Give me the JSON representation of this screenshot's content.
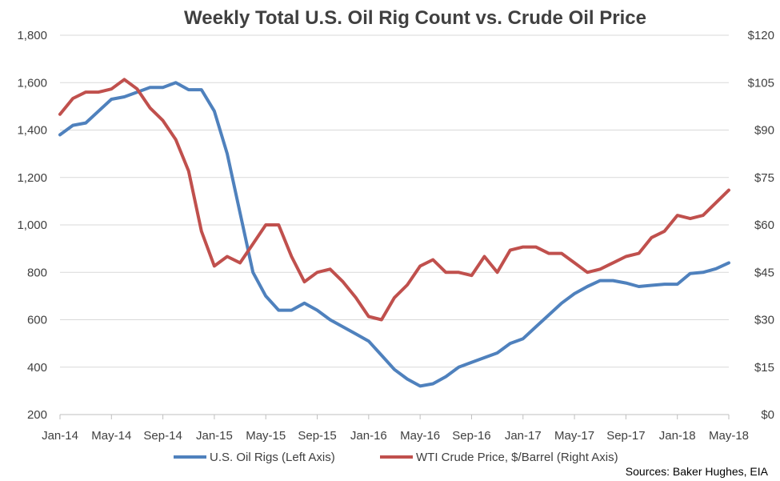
{
  "chart_data": {
    "type": "line",
    "title": "Weekly Total U.S. Oil Rig Count vs. Crude Oil Price",
    "x_ticks": [
      "Jan-14",
      "May-14",
      "Sep-14",
      "Jan-15",
      "May-15",
      "Sep-15",
      "Jan-16",
      "May-16",
      "Sep-16",
      "Jan-17",
      "May-17",
      "Sep-17",
      "Jan-18",
      "May-18"
    ],
    "x_range": [
      "2014-01",
      "2018-05"
    ],
    "y_left": {
      "ticks": [
        "200",
        "400",
        "600",
        "800",
        "1,000",
        "1,200",
        "1,400",
        "1,600",
        "1,800"
      ],
      "range": [
        200,
        1800
      ]
    },
    "y_right": {
      "ticks": [
        "$0",
        "$15",
        "$30",
        "$45",
        "$60",
        "$75",
        "$90",
        "$105",
        "$120"
      ],
      "range": [
        0,
        120
      ]
    },
    "grid": "horizontal",
    "legend_position": "bottom",
    "source": "Sources: Baker Hughes, EIA",
    "series": [
      {
        "name": "U.S. Oil Rigs (Left Axis)",
        "axis": "left",
        "color": "#4f81bd",
        "points": [
          [
            "2014-01",
            1380
          ],
          [
            "2014-02",
            1420
          ],
          [
            "2014-03",
            1430
          ],
          [
            "2014-04",
            1480
          ],
          [
            "2014-05",
            1530
          ],
          [
            "2014-06",
            1540
          ],
          [
            "2014-07",
            1560
          ],
          [
            "2014-08",
            1580
          ],
          [
            "2014-09",
            1580
          ],
          [
            "2014-10",
            1600
          ],
          [
            "2014-11",
            1570
          ],
          [
            "2014-12",
            1570
          ],
          [
            "2015-01",
            1480
          ],
          [
            "2015-02",
            1300
          ],
          [
            "2015-03",
            1050
          ],
          [
            "2015-04",
            800
          ],
          [
            "2015-05",
            700
          ],
          [
            "2015-06",
            640
          ],
          [
            "2015-07",
            640
          ],
          [
            "2015-08",
            670
          ],
          [
            "2015-09",
            640
          ],
          [
            "2015-10",
            600
          ],
          [
            "2015-11",
            570
          ],
          [
            "2015-12",
            540
          ],
          [
            "2016-01",
            510
          ],
          [
            "2016-02",
            450
          ],
          [
            "2016-03",
            390
          ],
          [
            "2016-04",
            350
          ],
          [
            "2016-05",
            320
          ],
          [
            "2016-06",
            330
          ],
          [
            "2016-07",
            360
          ],
          [
            "2016-08",
            400
          ],
          [
            "2016-09",
            420
          ],
          [
            "2016-10",
            440
          ],
          [
            "2016-11",
            460
          ],
          [
            "2016-12",
            500
          ],
          [
            "2017-01",
            520
          ],
          [
            "2017-02",
            570
          ],
          [
            "2017-03",
            620
          ],
          [
            "2017-04",
            670
          ],
          [
            "2017-05",
            710
          ],
          [
            "2017-06",
            740
          ],
          [
            "2017-07",
            765
          ],
          [
            "2017-08",
            765
          ],
          [
            "2017-09",
            755
          ],
          [
            "2017-10",
            740
          ],
          [
            "2017-11",
            745
          ],
          [
            "2017-12",
            750
          ],
          [
            "2018-01",
            750
          ],
          [
            "2018-02",
            795
          ],
          [
            "2018-03",
            800
          ],
          [
            "2018-04",
            815
          ],
          [
            "2018-05",
            840
          ]
        ]
      },
      {
        "name": "WTI Crude Price, $/Barrel (Right Axis)",
        "axis": "right",
        "color": "#c0504d",
        "points": [
          [
            "2014-01",
            95
          ],
          [
            "2014-02",
            100
          ],
          [
            "2014-03",
            102
          ],
          [
            "2014-04",
            102
          ],
          [
            "2014-05",
            103
          ],
          [
            "2014-06",
            106
          ],
          [
            "2014-07",
            103
          ],
          [
            "2014-08",
            97
          ],
          [
            "2014-09",
            93
          ],
          [
            "2014-10",
            87
          ],
          [
            "2014-11",
            77
          ],
          [
            "2014-12",
            58
          ],
          [
            "2015-01",
            47
          ],
          [
            "2015-02",
            50
          ],
          [
            "2015-03",
            48
          ],
          [
            "2015-04",
            54
          ],
          [
            "2015-05",
            60
          ],
          [
            "2015-06",
            60
          ],
          [
            "2015-07",
            50
          ],
          [
            "2015-08",
            42
          ],
          [
            "2015-09",
            45
          ],
          [
            "2015-10",
            46
          ],
          [
            "2015-11",
            42
          ],
          [
            "2015-12",
            37
          ],
          [
            "2016-01",
            31
          ],
          [
            "2016-02",
            30
          ],
          [
            "2016-03",
            37
          ],
          [
            "2016-04",
            41
          ],
          [
            "2016-05",
            47
          ],
          [
            "2016-06",
            49
          ],
          [
            "2016-07",
            45
          ],
          [
            "2016-08",
            45
          ],
          [
            "2016-09",
            44
          ],
          [
            "2016-10",
            50
          ],
          [
            "2016-11",
            45
          ],
          [
            "2016-12",
            52
          ],
          [
            "2017-01",
            53
          ],
          [
            "2017-02",
            53
          ],
          [
            "2017-03",
            51
          ],
          [
            "2017-04",
            51
          ],
          [
            "2017-05",
            48
          ],
          [
            "2017-06",
            45
          ],
          [
            "2017-07",
            46
          ],
          [
            "2017-08",
            48
          ],
          [
            "2017-09",
            50
          ],
          [
            "2017-10",
            51
          ],
          [
            "2017-11",
            56
          ],
          [
            "2017-12",
            58
          ],
          [
            "2018-01",
            63
          ],
          [
            "2018-02",
            62
          ],
          [
            "2018-03",
            63
          ],
          [
            "2018-04",
            67
          ],
          [
            "2018-05",
            71
          ]
        ]
      }
    ]
  }
}
